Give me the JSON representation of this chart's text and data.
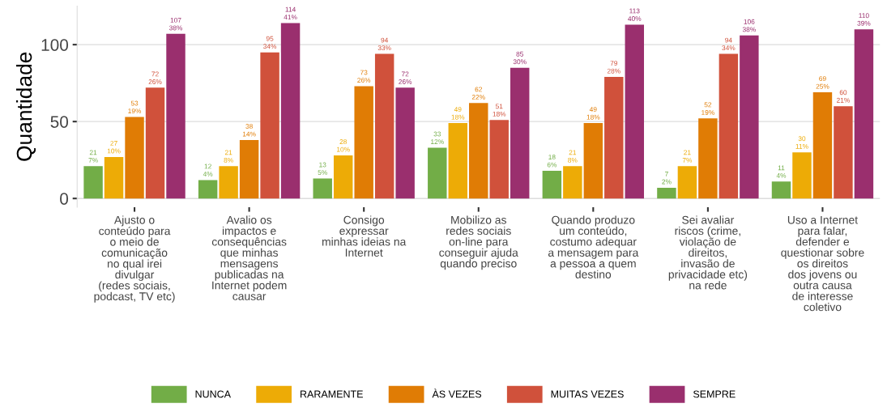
{
  "chart_data": {
    "type": "bar",
    "ylabel": "Quantidade",
    "categories": [
      "Ajusto o\nconteúdo para\no meio de\ncomunicação\nno qual irei\ndivulgar\n(redes sociais,\npodcast, TV etc)",
      "Avalio os\nimpactos e\nconsequências\nque minhas\nmensagens\npublicadas na\nInternet podem\ncausar",
      "Consigo\nexpressar\nminhas ideias na\nInternet",
      "Mobilizo as\nredes sociais\non-line para\nconseguir ajuda\nquando preciso",
      "Quando produzo\num conteúdo,\ncostumo adequar\na mensagem para\na pessoa a quem\ndestino",
      "Sei avaliar\nriscos (crime,\nviolação de\ndireitos,\ninvasão de\nprivacidade etc)\nna rede",
      "Uso a Internet\npara falar,\ndefender e\nquestionar sobre\nos direitos\ndos jovens ou\noutra causa\nde interesse\ncoletivo"
    ],
    "series": [
      {
        "name": "NUNCA",
        "color": "#72ad47",
        "values": [
          21,
          12,
          13,
          33,
          18,
          7,
          11
        ],
        "value_labels": [
          "21\n7%",
          "12\n4%",
          "13\n5%",
          "33\n12%",
          "18\n6%",
          "7\n2%",
          "11\n4%"
        ]
      },
      {
        "name": "RARAMENTE",
        "color": "#edab06",
        "values": [
          27,
          21,
          28,
          49,
          21,
          21,
          30
        ],
        "value_labels": [
          "27\n10%",
          "21\n8%",
          "28\n10%",
          "49\n18%",
          "21\n8%",
          "21\n7%",
          "30\n11%"
        ]
      },
      {
        "name": "ÀS VEZES",
        "color": "#e07c05",
        "values": [
          53,
          38,
          73,
          62,
          49,
          52,
          69
        ],
        "value_labels": [
          "53\n19%",
          "38\n14%",
          "73\n26%",
          "62\n22%",
          "49\n18%",
          "52\n19%",
          "69\n25%"
        ]
      },
      {
        "name": "MUITAS VEZES",
        "color": "#d0513b",
        "values": [
          72,
          95,
          94,
          51,
          79,
          94,
          60
        ],
        "value_labels": [
          "72\n26%",
          "95\n34%",
          "94\n33%",
          "51\n18%",
          "79\n28%",
          "94\n34%",
          "60\n21%"
        ]
      },
      {
        "name": "SEMPRE",
        "color": "#9a2f6e",
        "values": [
          107,
          114,
          72,
          85,
          113,
          106,
          110
        ],
        "value_labels": [
          "107\n38%",
          "114\n41%",
          "72\n26%",
          "85\n30%",
          "113\n40%",
          "106\n38%",
          "110\n39%"
        ]
      }
    ],
    "ylim": [
      -5.7,
      125
    ],
    "yticks": [
      0,
      50,
      100
    ],
    "grid": "y",
    "legend": "bottom"
  }
}
